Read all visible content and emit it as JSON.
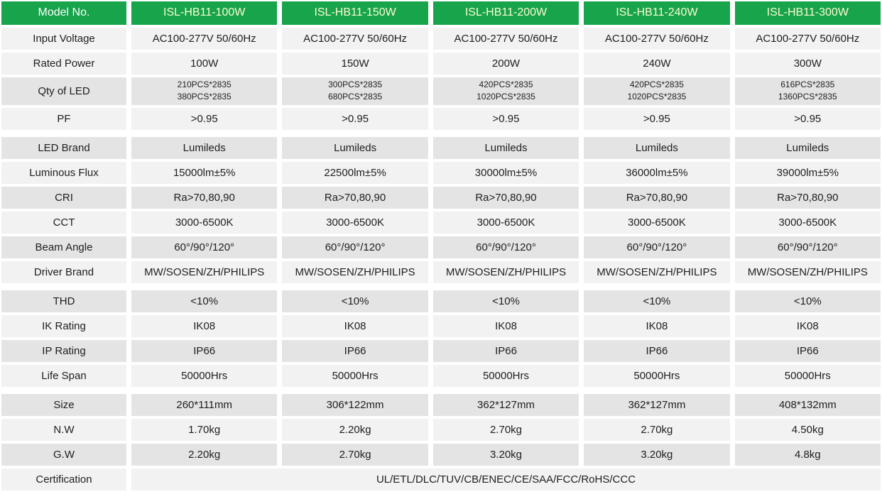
{
  "colors": {
    "header_bg": "#17A44B",
    "header_label_text": "#FFFFFF",
    "header_model_text": "#FCFCD2",
    "row_light_bg": "#F2F2F2",
    "row_dark_bg": "#E4E4E4",
    "body_text": "#1E1E1E"
  },
  "table": {
    "header": {
      "label": "Model No.",
      "models": [
        "ISL-HB11-100W",
        "ISL-HB11-150W",
        "ISL-HB11-200W",
        "ISL-HB11-240W",
        "ISL-HB11-300W"
      ]
    },
    "rows": [
      {
        "label": "Input Voltage",
        "shade": "light",
        "values": [
          "AC100-277V 50/60Hz",
          "AC100-277V 50/60Hz",
          "AC100-277V 50/60Hz",
          "AC100-277V 50/60Hz",
          "AC100-277V 50/60Hz"
        ]
      },
      {
        "label": "Rated Power",
        "shade": "light",
        "values": [
          "100W",
          "150W",
          "200W",
          "240W",
          "300W"
        ]
      },
      {
        "label": "Qty of LED",
        "shade": "dark",
        "values": [
          "210PCS*2835\n380PCS*2835",
          "300PCS*2835\n680PCS*2835",
          "420PCS*2835\n1020PCS*2835",
          "420PCS*2835\n1020PCS*2835",
          "616PCS*2835\n1360PCS*2835"
        ]
      },
      {
        "label": "PF",
        "shade": "light",
        "values": [
          ">0.95",
          ">0.95",
          ">0.95",
          ">0.95",
          ">0.95"
        ]
      },
      {
        "label": "LED Brand",
        "shade": "dark",
        "gap_before": true,
        "values": [
          "Lumileds",
          "Lumileds",
          "Lumileds",
          "Lumileds",
          "Lumileds"
        ]
      },
      {
        "label": "Luminous Flux",
        "shade": "light",
        "values": [
          "15000lm±5%",
          "22500lm±5%",
          "30000lm±5%",
          "36000lm±5%",
          "39000lm±5%"
        ]
      },
      {
        "label": "CRI",
        "shade": "dark",
        "values": [
          "Ra>70,80,90",
          "Ra>70,80,90",
          "Ra>70,80,90",
          "Ra>70,80,90",
          "Ra>70,80,90"
        ]
      },
      {
        "label": "CCT",
        "shade": "light",
        "values": [
          "3000-6500K",
          "3000-6500K",
          "3000-6500K",
          "3000-6500K",
          "3000-6500K"
        ]
      },
      {
        "label": "Beam Angle",
        "shade": "dark",
        "values": [
          "60°/90°/120°",
          "60°/90°/120°",
          "60°/90°/120°",
          "60°/90°/120°",
          "60°/90°/120°"
        ]
      },
      {
        "label": "Driver Brand",
        "shade": "light",
        "values": [
          "MW/SOSEN/ZH/PHILIPS",
          "MW/SOSEN/ZH/PHILIPS",
          "MW/SOSEN/ZH/PHILIPS",
          "MW/SOSEN/ZH/PHILIPS",
          "MW/SOSEN/ZH/PHILIPS"
        ]
      },
      {
        "label": "THD",
        "shade": "dark",
        "gap_before": true,
        "values": [
          "<10%",
          "<10%",
          "<10%",
          "<10%",
          "<10%"
        ]
      },
      {
        "label": "IK Rating",
        "shade": "light",
        "values": [
          "IK08",
          "IK08",
          "IK08",
          "IK08",
          "IK08"
        ]
      },
      {
        "label": "IP Rating",
        "shade": "dark",
        "values": [
          "IP66",
          "IP66",
          "IP66",
          "IP66",
          "IP66"
        ]
      },
      {
        "label": "Life Span",
        "shade": "light",
        "values": [
          "50000Hrs",
          "50000Hrs",
          "50000Hrs",
          "50000Hrs",
          "50000Hrs"
        ]
      },
      {
        "label": "Size",
        "shade": "dark",
        "gap_before": true,
        "values": [
          "260*111mm",
          "306*122mm",
          "362*127mm",
          "362*127mm",
          "408*132mm"
        ]
      },
      {
        "label": "N.W",
        "shade": "light",
        "values": [
          "1.70kg",
          "2.20kg",
          "2.70kg",
          "2.70kg",
          "4.50kg"
        ]
      },
      {
        "label": "G.W",
        "shade": "dark",
        "values": [
          "2.20kg",
          "2.70kg",
          "3.20kg",
          "3.20kg",
          "4.8kg"
        ]
      },
      {
        "label": "Certification",
        "shade": "light",
        "span_value": "UL/ETL/DLC/TUV/CB/ENEC/CE/SAA/FCC/RoHS/CCC"
      }
    ]
  }
}
